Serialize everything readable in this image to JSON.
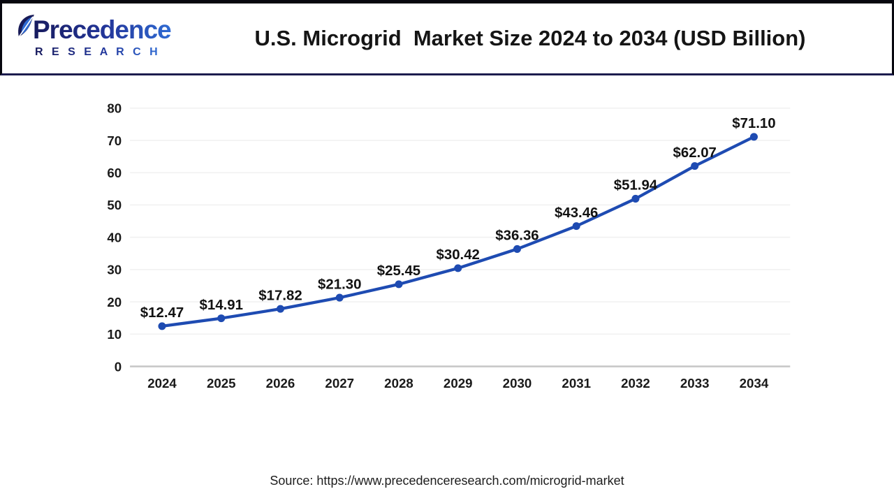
{
  "header": {
    "logo": {
      "line1": "Precedence",
      "line2": "R E S E A R C H"
    },
    "title": "U.S. Microgrid  Market Size 2024 to 2034 (USD Billion)"
  },
  "chart_data": {
    "type": "line",
    "title": "U.S. Microgrid  Market Size 2024 to 2034 (USD Billion)",
    "categories": [
      "2024",
      "2025",
      "2026",
      "2027",
      "2028",
      "2029",
      "2030",
      "2031",
      "2032",
      "2033",
      "2034"
    ],
    "values": [
      12.47,
      14.91,
      17.82,
      21.3,
      25.45,
      30.42,
      36.36,
      43.46,
      51.94,
      62.07,
      71.1
    ],
    "point_labels": [
      "$12.47",
      "$14.91",
      "$17.82",
      "$21.30",
      "$25.45",
      "$30.42",
      "$36.36",
      "$43.46",
      "$51.94",
      "$62.07",
      "$71.10"
    ],
    "xlabel": "",
    "ylabel": "",
    "ylim": [
      0,
      80
    ],
    "ytick_step": 10,
    "grid": "horizontal",
    "legend": "none",
    "colors": {
      "line": "#1e4bb2",
      "marker": "#1e4bb2",
      "grid": "#f2f2f2",
      "axis": "#c6c6c6",
      "tick_text": "#1a1a1a",
      "point_label_text": "#121212"
    }
  },
  "footer": {
    "source": "Source: https://www.precedenceresearch.com/microgrid-market"
  }
}
